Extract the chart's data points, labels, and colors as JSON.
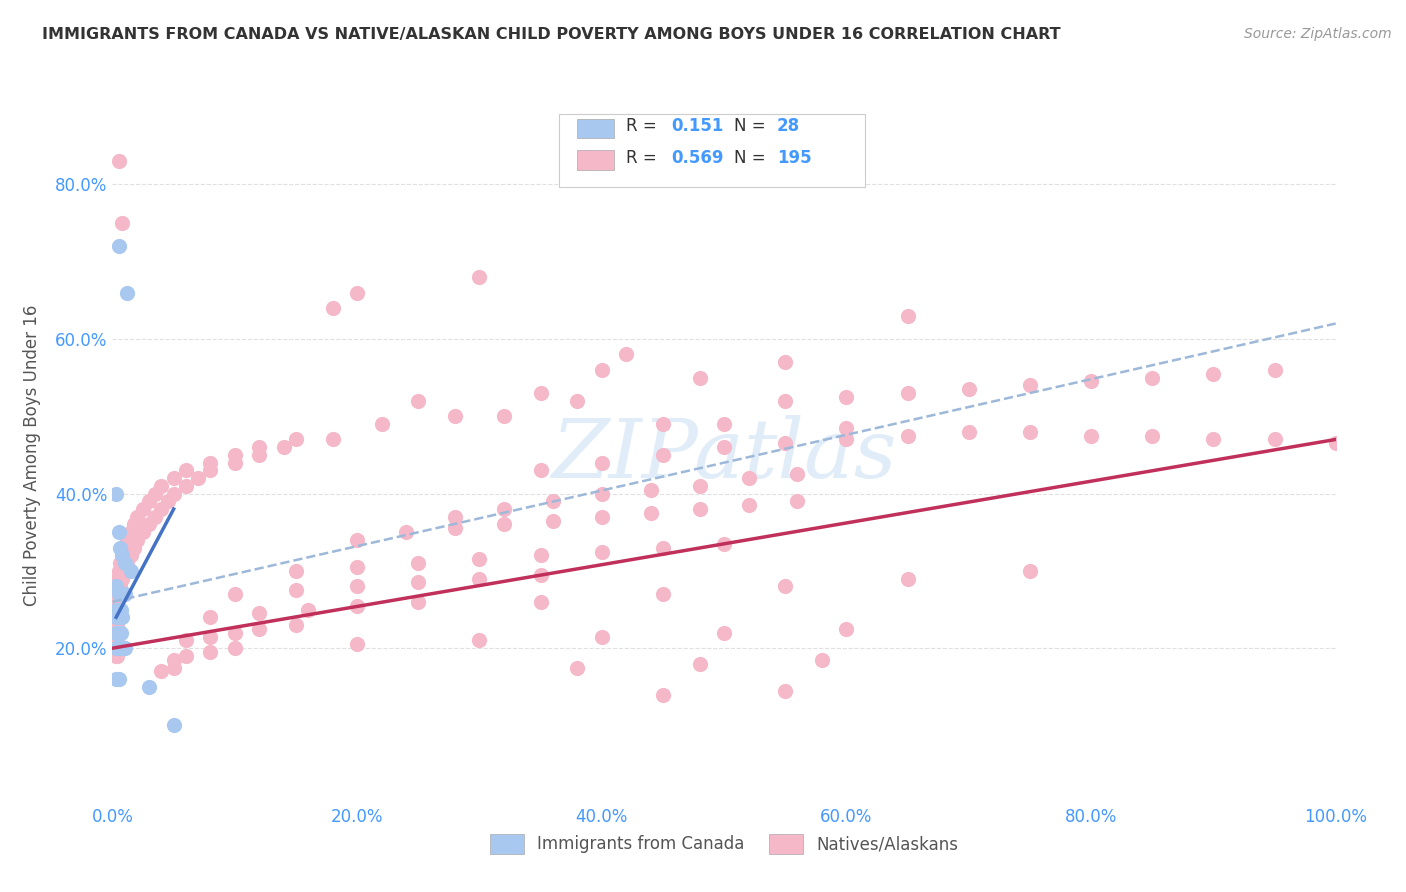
{
  "title": "IMMIGRANTS FROM CANADA VS NATIVE/ALASKAN CHILD POVERTY AMONG BOYS UNDER 16 CORRELATION CHART",
  "source": "Source: ZipAtlas.com",
  "ylabel": "Child Poverty Among Boys Under 16",
  "xlabel": "",
  "background_color": "#ffffff",
  "watermark": "ZIPatlas",
  "legend_label1": "Immigrants from Canada",
  "legend_label2": "Natives/Alaskans",
  "color_blue": "#a8c8f0",
  "color_pink": "#f5b8c8",
  "trendline_blue": "#4472c4",
  "trendline_pink": "#c0305a",
  "trendline_dashed_color": "#9db8d8",
  "blue_scatter": [
    [
      0.5,
      72.0
    ],
    [
      1.2,
      66.0
    ],
    [
      0.3,
      40.0
    ],
    [
      0.5,
      35.0
    ],
    [
      0.6,
      33.0
    ],
    [
      0.8,
      32.0
    ],
    [
      1.0,
      31.0
    ],
    [
      1.5,
      30.0
    ],
    [
      0.3,
      28.0
    ],
    [
      0.5,
      27.0
    ],
    [
      0.8,
      27.0
    ],
    [
      1.0,
      27.0
    ],
    [
      0.3,
      25.0
    ],
    [
      0.5,
      25.0
    ],
    [
      0.7,
      25.0
    ],
    [
      0.3,
      24.0
    ],
    [
      0.5,
      24.0
    ],
    [
      0.8,
      24.0
    ],
    [
      0.3,
      22.0
    ],
    [
      0.5,
      22.0
    ],
    [
      0.7,
      22.0
    ],
    [
      0.3,
      20.0
    ],
    [
      0.5,
      20.0
    ],
    [
      0.7,
      20.0
    ],
    [
      1.0,
      20.0
    ],
    [
      0.3,
      16.0
    ],
    [
      0.5,
      16.0
    ],
    [
      3.0,
      15.0
    ],
    [
      5.0,
      10.0
    ]
  ],
  "pink_scatter": [
    [
      0.5,
      83.0
    ],
    [
      0.8,
      75.0
    ],
    [
      30.0,
      68.0
    ],
    [
      20.0,
      66.0
    ],
    [
      18.0,
      64.0
    ],
    [
      65.0,
      63.0
    ],
    [
      42.0,
      58.0
    ],
    [
      55.0,
      57.0
    ],
    [
      40.0,
      56.0
    ],
    [
      48.0,
      55.0
    ],
    [
      35.0,
      53.0
    ],
    [
      38.0,
      52.0
    ],
    [
      25.0,
      52.0
    ],
    [
      28.0,
      50.0
    ],
    [
      32.0,
      50.0
    ],
    [
      22.0,
      49.0
    ],
    [
      45.0,
      49.0
    ],
    [
      50.0,
      49.0
    ],
    [
      60.0,
      48.5
    ],
    [
      70.0,
      48.0
    ],
    [
      75.0,
      48.0
    ],
    [
      80.0,
      47.5
    ],
    [
      85.0,
      47.5
    ],
    [
      90.0,
      47.0
    ],
    [
      95.0,
      47.0
    ],
    [
      100.0,
      46.5
    ],
    [
      15.0,
      47.0
    ],
    [
      18.0,
      47.0
    ],
    [
      12.0,
      46.0
    ],
    [
      14.0,
      46.0
    ],
    [
      10.0,
      45.0
    ],
    [
      12.0,
      45.0
    ],
    [
      8.0,
      44.0
    ],
    [
      10.0,
      44.0
    ],
    [
      6.0,
      43.0
    ],
    [
      8.0,
      43.0
    ],
    [
      5.0,
      42.0
    ],
    [
      7.0,
      42.0
    ],
    [
      4.0,
      41.0
    ],
    [
      6.0,
      41.0
    ],
    [
      3.5,
      40.0
    ],
    [
      5.0,
      40.0
    ],
    [
      3.0,
      39.0
    ],
    [
      4.5,
      39.0
    ],
    [
      2.5,
      38.0
    ],
    [
      4.0,
      38.0
    ],
    [
      2.0,
      37.0
    ],
    [
      3.5,
      37.0
    ],
    [
      1.8,
      36.0
    ],
    [
      3.0,
      36.0
    ],
    [
      1.5,
      35.0
    ],
    [
      2.5,
      35.0
    ],
    [
      1.2,
      34.0
    ],
    [
      2.0,
      34.0
    ],
    [
      1.0,
      33.0
    ],
    [
      1.8,
      33.0
    ],
    [
      0.8,
      32.0
    ],
    [
      1.5,
      32.0
    ],
    [
      0.6,
      31.0
    ],
    [
      1.2,
      31.0
    ],
    [
      0.5,
      30.0
    ],
    [
      1.0,
      30.0
    ],
    [
      0.4,
      29.0
    ],
    [
      0.8,
      29.0
    ],
    [
      0.3,
      28.0
    ],
    [
      0.6,
      28.0
    ],
    [
      0.3,
      27.0
    ],
    [
      0.5,
      27.0
    ],
    [
      0.3,
      26.0
    ],
    [
      0.4,
      26.0
    ],
    [
      0.3,
      25.0
    ],
    [
      0.4,
      25.0
    ],
    [
      0.3,
      24.0
    ],
    [
      0.4,
      24.0
    ],
    [
      0.3,
      23.0
    ],
    [
      0.4,
      23.0
    ],
    [
      0.3,
      22.0
    ],
    [
      0.4,
      22.0
    ],
    [
      0.3,
      21.0
    ],
    [
      0.4,
      21.0
    ],
    [
      0.3,
      20.0
    ],
    [
      0.4,
      20.0
    ],
    [
      0.3,
      19.0
    ],
    [
      0.4,
      19.0
    ],
    [
      35.0,
      43.0
    ],
    [
      40.0,
      44.0
    ],
    [
      45.0,
      45.0
    ],
    [
      50.0,
      46.0
    ],
    [
      55.0,
      46.5
    ],
    [
      60.0,
      47.0
    ],
    [
      65.0,
      47.5
    ],
    [
      55.0,
      52.0
    ],
    [
      60.0,
      52.5
    ],
    [
      65.0,
      53.0
    ],
    [
      70.0,
      53.5
    ],
    [
      75.0,
      54.0
    ],
    [
      80.0,
      54.5
    ],
    [
      85.0,
      55.0
    ],
    [
      90.0,
      55.5
    ],
    [
      95.0,
      56.0
    ],
    [
      28.0,
      37.0
    ],
    [
      32.0,
      38.0
    ],
    [
      36.0,
      39.0
    ],
    [
      40.0,
      40.0
    ],
    [
      44.0,
      40.5
    ],
    [
      48.0,
      41.0
    ],
    [
      52.0,
      42.0
    ],
    [
      56.0,
      42.5
    ],
    [
      20.0,
      34.0
    ],
    [
      24.0,
      35.0
    ],
    [
      28.0,
      35.5
    ],
    [
      32.0,
      36.0
    ],
    [
      36.0,
      36.5
    ],
    [
      40.0,
      37.0
    ],
    [
      44.0,
      37.5
    ],
    [
      48.0,
      38.0
    ],
    [
      52.0,
      38.5
    ],
    [
      56.0,
      39.0
    ],
    [
      15.0,
      30.0
    ],
    [
      20.0,
      30.5
    ],
    [
      25.0,
      31.0
    ],
    [
      30.0,
      31.5
    ],
    [
      35.0,
      32.0
    ],
    [
      40.0,
      32.5
    ],
    [
      45.0,
      33.0
    ],
    [
      50.0,
      33.5
    ],
    [
      10.0,
      27.0
    ],
    [
      15.0,
      27.5
    ],
    [
      20.0,
      28.0
    ],
    [
      25.0,
      28.5
    ],
    [
      30.0,
      29.0
    ],
    [
      35.0,
      29.5
    ],
    [
      8.0,
      24.0
    ],
    [
      12.0,
      24.5
    ],
    [
      16.0,
      25.0
    ],
    [
      20.0,
      25.5
    ],
    [
      25.0,
      26.0
    ],
    [
      6.0,
      21.0
    ],
    [
      8.0,
      21.5
    ],
    [
      10.0,
      22.0
    ],
    [
      12.0,
      22.5
    ],
    [
      15.0,
      23.0
    ],
    [
      5.0,
      18.5
    ],
    [
      6.0,
      19.0
    ],
    [
      8.0,
      19.5
    ],
    [
      10.0,
      20.0
    ],
    [
      4.0,
      17.0
    ],
    [
      5.0,
      17.5
    ],
    [
      35.0,
      26.0
    ],
    [
      45.0,
      27.0
    ],
    [
      55.0,
      28.0
    ],
    [
      65.0,
      29.0
    ],
    [
      75.0,
      30.0
    ],
    [
      20.0,
      20.5
    ],
    [
      30.0,
      21.0
    ],
    [
      40.0,
      21.5
    ],
    [
      50.0,
      22.0
    ],
    [
      60.0,
      22.5
    ],
    [
      38.0,
      17.5
    ],
    [
      48.0,
      18.0
    ],
    [
      58.0,
      18.5
    ],
    [
      45.0,
      14.0
    ],
    [
      55.0,
      14.5
    ]
  ],
  "xlim": [
    0.0,
    100.0
  ],
  "ylim": [
    0.0,
    90.0
  ],
  "xtick_positions": [
    0.0,
    20.0,
    40.0,
    60.0,
    80.0,
    100.0
  ],
  "xtick_labels": [
    "0.0%",
    "20.0%",
    "40.0%",
    "60.0%",
    "80.0%",
    "100.0%"
  ],
  "ytick_positions": [
    20.0,
    40.0,
    60.0,
    80.0
  ],
  "ytick_labels": [
    "20.0%",
    "40.0%",
    "60.0%",
    "80.0%"
  ],
  "blue_trend": [
    0.3,
    5.0,
    24.0,
    38.0
  ],
  "pink_trend": [
    0.0,
    100.0,
    20.0,
    47.0
  ],
  "dashed_trend": [
    0.0,
    100.0,
    26.0,
    62.0
  ],
  "grid_color": "#e0e0e0",
  "tick_color": "#4499ff"
}
